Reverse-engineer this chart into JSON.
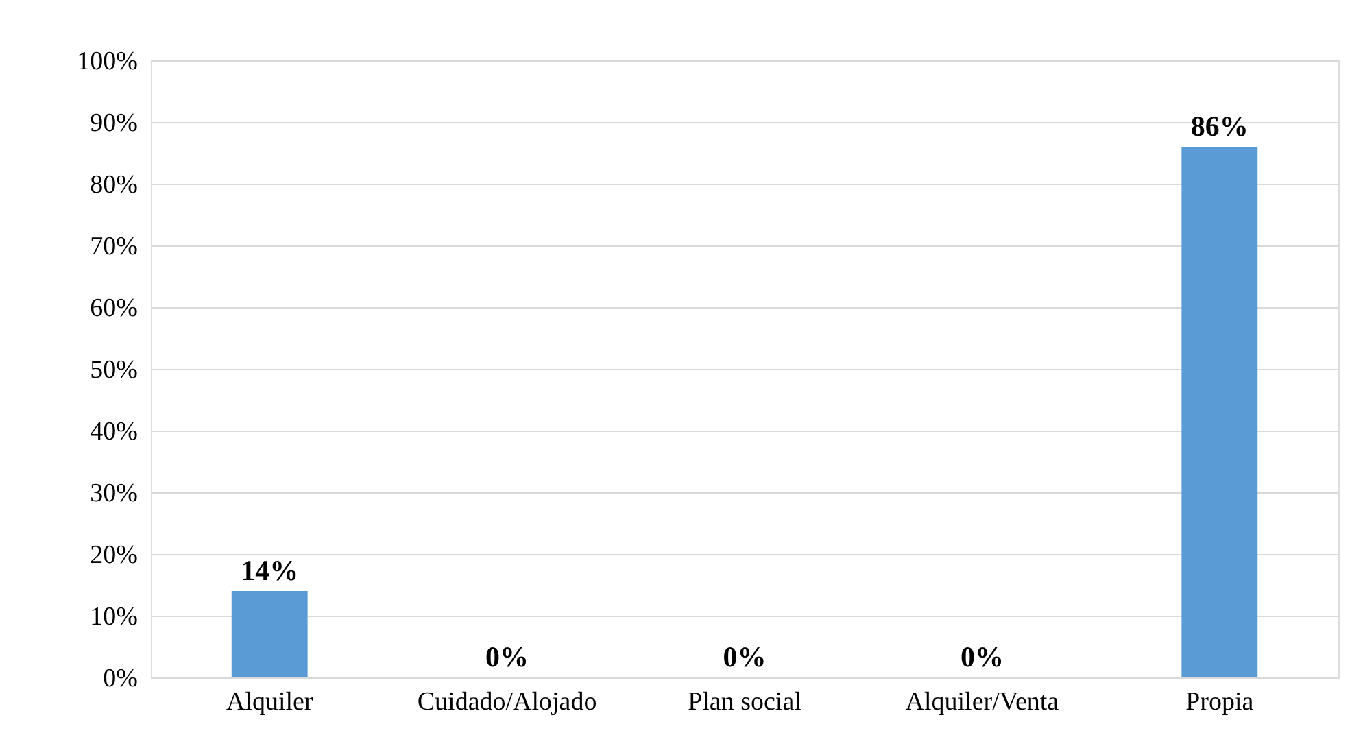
{
  "chart_data": {
    "type": "bar",
    "categories": [
      "Alquiler",
      "Cuidado/Alojado",
      "Plan social",
      "Alquiler/Venta",
      "Propia"
    ],
    "values": [
      14,
      0,
      0,
      0,
      86
    ],
    "value_labels": [
      "14%",
      "0%",
      "0%",
      "0%",
      "86%"
    ],
    "color": "#5b9bd5",
    "ylim": [
      0,
      100
    ],
    "yticks": [
      {
        "value": 0,
        "label": "0%"
      },
      {
        "value": 10,
        "label": "10%"
      },
      {
        "value": 20,
        "label": "20%"
      },
      {
        "value": 30,
        "label": "30%"
      },
      {
        "value": 40,
        "label": "40%"
      },
      {
        "value": 50,
        "label": "50%"
      },
      {
        "value": 60,
        "label": "60%"
      },
      {
        "value": 70,
        "label": "70%"
      },
      {
        "value": 80,
        "label": "80%"
      },
      {
        "value": 90,
        "label": "90%"
      },
      {
        "value": 100,
        "label": "100%"
      }
    ],
    "grid": "y"
  }
}
